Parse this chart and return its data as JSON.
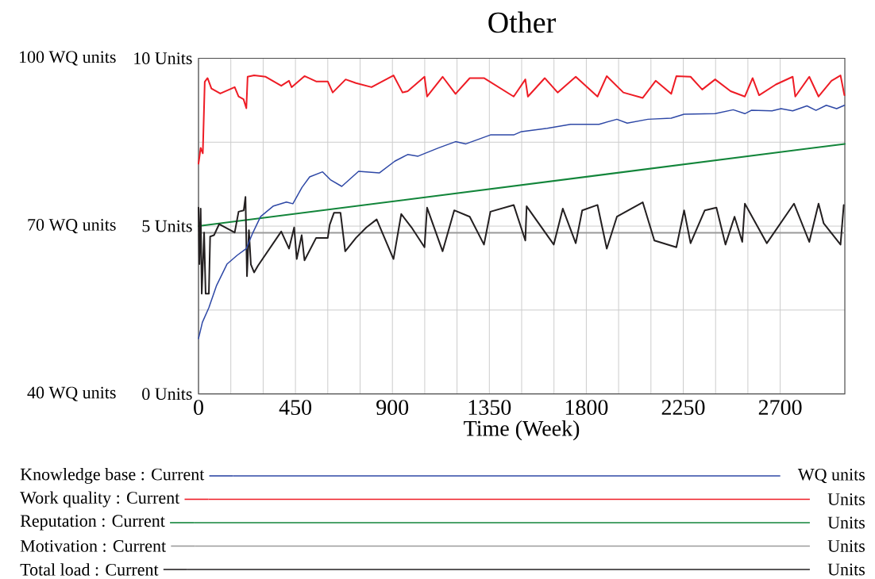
{
  "chart_data": {
    "type": "line",
    "title": "Other",
    "xlabel": "Time (Week)",
    "xlim": [
      0,
      3000
    ],
    "xticks": [
      0,
      450,
      900,
      1350,
      1800,
      2250,
      2700
    ],
    "ylim": [
      0,
      10
    ],
    "yticks": [
      {
        "value": 0,
        "label": "0 Units"
      },
      {
        "value": 5,
        "label": "5 Units"
      },
      {
        "value": 10,
        "label": "10 Units"
      }
    ],
    "y2lim": [
      40,
      100
    ],
    "y2ticks": [
      {
        "value": 40,
        "label": "40 WQ units"
      },
      {
        "value": 70,
        "label": "70 WQ units"
      },
      {
        "value": 100,
        "label": "100 WQ units"
      }
    ],
    "grid": true,
    "legend": "bottom",
    "annotations": [
      "WQ units",
      "Units",
      "Units",
      "Units",
      "Units"
    ],
    "series": [
      {
        "name": "Knowledge base : Current",
        "color": "#2e48a6",
        "axis": "y2",
        "x": [
          0,
          18,
          48,
          84,
          132,
          180,
          222,
          252,
          288,
          348,
          408,
          438,
          480,
          516,
          576,
          612,
          665,
          743,
          839,
          911,
          971,
          1019,
          1115,
          1193,
          1241,
          1355,
          1463,
          1499,
          1619,
          1727,
          1859,
          1942,
          1990,
          2086,
          2194,
          2254,
          2398,
          2482,
          2536,
          2566,
          2662,
          2704,
          2758,
          2824,
          2866,
          2914,
          2962,
          2998
        ],
        "values": [
          49.9,
          52.8,
          55.4,
          59.4,
          63.2,
          64.8,
          66.0,
          68.8,
          71.7,
          73.6,
          74.3,
          74.0,
          76.9,
          78.8,
          79.7,
          78.3,
          77.1,
          79.8,
          79.5,
          81.6,
          82.8,
          82.5,
          84.0,
          85.1,
          84.7,
          86.3,
          86.3,
          86.9,
          87.5,
          88.2,
          88.2,
          89.1,
          88.4,
          89.1,
          89.3,
          90.0,
          90.1,
          90.8,
          90.1,
          90.7,
          90.6,
          91.0,
          90.6,
          91.5,
          90.7,
          91.6,
          91.0,
          91.6
        ]
      },
      {
        "name": "Work quality : Current",
        "color": "#ee1c25",
        "x": [
          0,
          10,
          20,
          29,
          42,
          60,
          101,
          168,
          186,
          209,
          222,
          228,
          258,
          312,
          384,
          420,
          432,
          492,
          546,
          600,
          623,
          683,
          731,
          803,
          905,
          947,
          971,
          1049,
          1061,
          1133,
          1193,
          1259,
          1325,
          1463,
          1517,
          1529,
          1607,
          1667,
          1751,
          1852,
          1895,
          1972,
          2062,
          2122,
          2194,
          2218,
          2284,
          2338,
          2398,
          2470,
          2536,
          2572,
          2602,
          2680,
          2758,
          2770,
          2835,
          2878,
          2938,
          2980,
          2998
        ],
        "values": [
          6.86,
          7.33,
          7.17,
          9.3,
          9.41,
          9.1,
          8.95,
          9.14,
          8.86,
          8.78,
          8.51,
          9.45,
          9.49,
          9.45,
          9.18,
          9.33,
          9.14,
          9.47,
          9.31,
          9.31,
          8.98,
          9.37,
          9.26,
          9.14,
          9.49,
          8.98,
          9.02,
          9.45,
          8.86,
          9.45,
          8.94,
          9.41,
          9.41,
          8.86,
          9.37,
          8.86,
          9.41,
          8.98,
          9.45,
          8.86,
          9.47,
          8.98,
          8.82,
          9.33,
          8.94,
          9.47,
          9.45,
          9.07,
          9.37,
          9.02,
          8.86,
          9.41,
          8.9,
          9.22,
          9.45,
          8.86,
          9.45,
          8.86,
          9.33,
          9.49,
          8.9
        ]
      },
      {
        "name": "Reputation : Current",
        "color": "#12853a",
        "x": [
          0,
          3000
        ],
        "values": [
          5.0,
          7.45
        ]
      },
      {
        "name": "Motivation : Current",
        "color": "#9a9a9a",
        "x": [
          0,
          3000
        ],
        "values": [
          4.8,
          4.8
        ]
      },
      {
        "name": "Total load : Current",
        "color": "#231f20",
        "x": [
          0,
          4,
          10,
          15,
          26,
          33,
          48,
          54,
          72,
          96,
          168,
          186,
          210,
          218,
          225,
          234,
          243,
          258,
          276,
          384,
          420,
          444,
          456,
          479,
          492,
          546,
          600,
          609,
          629,
          659,
          681,
          731,
          779,
          827,
          905,
          941,
          989,
          1049,
          1061,
          1133,
          1187,
          1259,
          1325,
          1355,
          1463,
          1517,
          1523,
          1649,
          1691,
          1751,
          1781,
          1852,
          1895,
          1942,
          2062,
          2116,
          2218,
          2254,
          2284,
          2350,
          2404,
          2446,
          2488,
          2524,
          2536,
          2638,
          2764,
          2835,
          2878,
          2902,
          2980,
          2995
        ],
        "values": [
          5.55,
          3.87,
          5.52,
          2.99,
          4.81,
          2.99,
          2.99,
          4.69,
          4.73,
          5.06,
          4.81,
          5.43,
          5.47,
          5.87,
          3.51,
          4.88,
          3.86,
          3.62,
          3.82,
          4.84,
          4.33,
          4.96,
          4.02,
          4.73,
          3.98,
          4.65,
          4.65,
          5.04,
          5.4,
          5.4,
          4.25,
          4.65,
          4.96,
          5.2,
          4.02,
          5.36,
          4.96,
          4.37,
          5.55,
          4.25,
          5.47,
          5.28,
          4.45,
          5.43,
          5.63,
          4.57,
          5.59,
          4.45,
          5.52,
          4.49,
          5.47,
          5.63,
          4.33,
          5.28,
          5.71,
          4.57,
          4.37,
          5.47,
          4.49,
          5.47,
          5.55,
          4.45,
          5.28,
          4.53,
          5.67,
          4.49,
          5.67,
          4.53,
          5.67,
          5.08,
          4.45,
          5.63
        ]
      }
    ]
  }
}
